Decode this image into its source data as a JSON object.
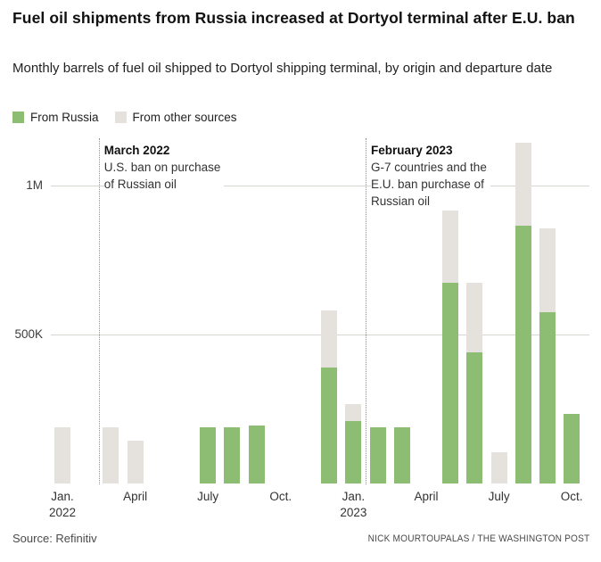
{
  "header": {
    "title": "Fuel oil shipments from Russia increased at Dortyol terminal after E.U. ban",
    "subtitle": "Monthly barrels of fuel oil shipped to Dortyol shipping terminal, by origin and departure date"
  },
  "legend": [
    {
      "label": "From Russia",
      "color": "#8dbd72"
    },
    {
      "label": "From other sources",
      "color": "#e5e2de"
    }
  ],
  "chart_data": {
    "type": "bar",
    "stacked": true,
    "title": "Fuel oil shipments from Russia increased at Dortyol terminal after E.U. ban",
    "xlabel": "",
    "ylabel": "Monthly barrels of fuel oil",
    "grid": "horizontal",
    "legend_position": "top-left",
    "ylim": [
      0,
      1150000
    ],
    "categories": [
      "Jan. 2022",
      "Feb. 2022",
      "March 2022",
      "April 2022",
      "May 2022",
      "June 2022",
      "July 2022",
      "Aug. 2022",
      "Sept. 2022",
      "Oct. 2022",
      "Nov. 2022",
      "Dec. 2022",
      "Jan. 2023",
      "Feb. 2023",
      "March 2023",
      "April 2023",
      "May 2023",
      "June 2023",
      "July 2023",
      "Aug. 2023",
      "Sept. 2023",
      "Oct. 2023"
    ],
    "series": [
      {
        "name": "From Russia",
        "color": "#8dbd72",
        "values": [
          0,
          0,
          0,
          0,
          0,
          0,
          190000,
          190000,
          195000,
          0,
          0,
          390000,
          210000,
          190000,
          190000,
          0,
          675000,
          440000,
          0,
          865000,
          575000,
          235000
        ]
      },
      {
        "name": "From other sources",
        "color": "#e5e2de",
        "values": [
          190000,
          0,
          190000,
          145000,
          0,
          0,
          0,
          0,
          0,
          0,
          0,
          190000,
          55000,
          0,
          0,
          0,
          280000,
          235000,
          105000,
          280000,
          280000,
          0
        ]
      }
    ],
    "yticks": [
      {
        "label": "500K",
        "value": 500000
      },
      {
        "label": "1M",
        "value": 1000000
      }
    ],
    "x_ticks": [
      {
        "index": 0,
        "label": "Jan.",
        "year": "2022"
      },
      {
        "index": 3,
        "label": "April",
        "year": ""
      },
      {
        "index": 6,
        "label": "July",
        "year": ""
      },
      {
        "index": 9,
        "label": "Oct.",
        "year": ""
      },
      {
        "index": 12,
        "label": "Jan.",
        "year": "2023"
      },
      {
        "index": 15,
        "label": "April",
        "year": ""
      },
      {
        "index": 18,
        "label": "July",
        "year": ""
      },
      {
        "index": 21,
        "label": "Oct.",
        "year": ""
      }
    ],
    "annotations": [
      {
        "title": "March 2022",
        "lines": [
          "U.S. ban on purchase",
          "of Russian oil"
        ],
        "month_index": 2
      },
      {
        "title": "February 2023",
        "lines": [
          "G-7 countries and the",
          "E.U. ban purchase of",
          "Russian oil"
        ],
        "month_index": 13
      }
    ]
  },
  "footer": {
    "source": "Source: Refinitiv",
    "credit": "NICK MOURTOUPALAS / THE WASHINGTON POST"
  }
}
